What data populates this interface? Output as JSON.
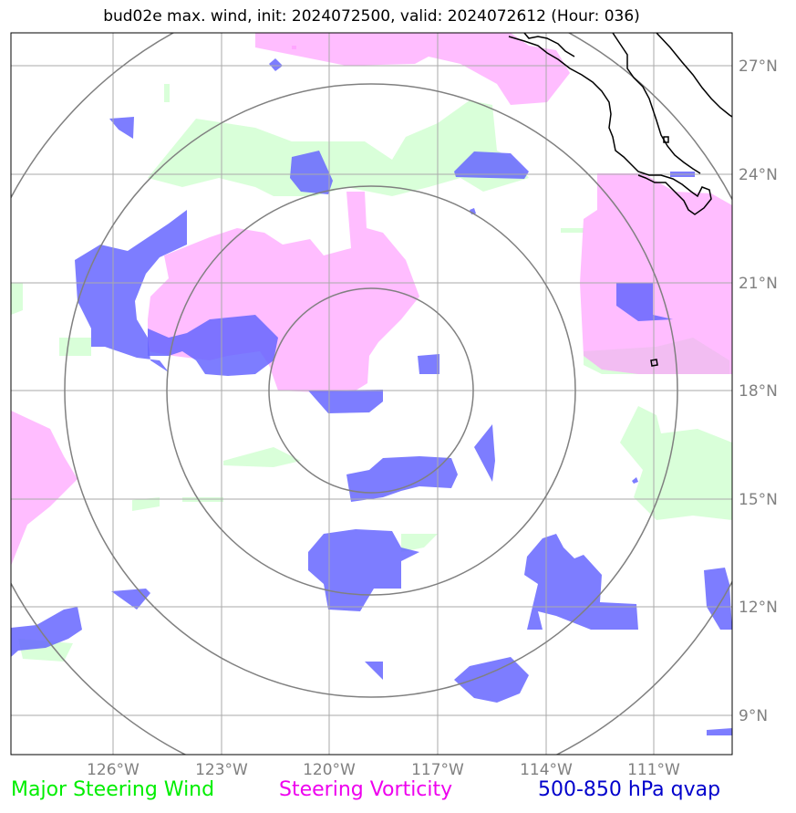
{
  "title": "bud02e max. wind, init: 2024072500, valid: 2024072612 (Hour: 036)",
  "lon_labels": [
    "126°W",
    "123°W",
    "120°W",
    "117°W",
    "114°W",
    "111°W"
  ],
  "lat_labels": [
    "27°N",
    "24°N",
    "21°N",
    "18°N",
    "15°N",
    "12°N",
    "9°N"
  ],
  "legend": {
    "wind": "Major Steering Wind",
    "vorticity": "Steering Vorticity",
    "qvap": "500-850 hPa qvap"
  },
  "colors": {
    "wind_fill": "#ccffcc",
    "vorticity_fill": "#ff99ff",
    "qvap_fill": "#6666ff",
    "wind_text": "#00ee00",
    "vorticity_text": "#ee00ee",
    "qvap_text": "#0000cc",
    "grid": "#aaaaaa",
    "rings": "#808080",
    "coast": "#000000"
  },
  "map": {
    "projection": "lat-lon",
    "lon_range": [
      "128.8°W",
      "108.8°W"
    ],
    "lat_range": [
      "8°N",
      "28°N"
    ],
    "range_rings": 4,
    "gridlines": true
  }
}
